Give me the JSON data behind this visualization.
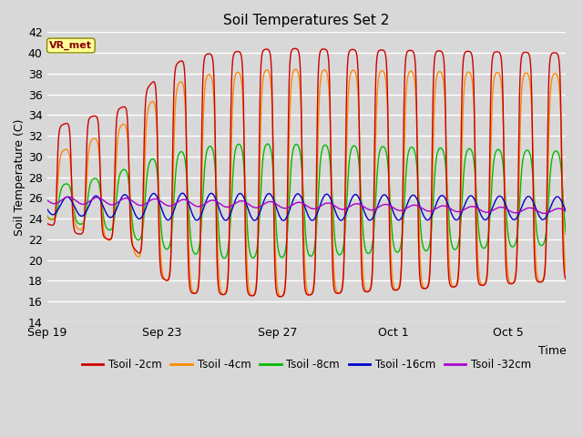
{
  "title": "Soil Temperatures Set 2",
  "xlabel": "Time",
  "ylabel": "Soil Temperature (C)",
  "ylim": [
    14,
    42
  ],
  "yticks": [
    14,
    16,
    18,
    20,
    22,
    24,
    26,
    28,
    30,
    32,
    34,
    36,
    38,
    40,
    42
  ],
  "bg_color": "#d8d8d8",
  "plot_bg_color": "#d8d8d8",
  "grid_color": "#ffffff",
  "series_colors": {
    "Tsoil -2cm": "#cc0000",
    "Tsoil -4cm": "#ff8800",
    "Tsoil -8cm": "#00bb00",
    "Tsoil -16cm": "#0000cc",
    "Tsoil -32cm": "#aa00cc"
  },
  "annotation_text": "VR_met",
  "annotation_bg": "#ffff99",
  "annotation_border": "#888800",
  "annotation_text_color": "#880000",
  "xtick_labels": [
    "Sep 19",
    "Sep 23",
    "Sep 27",
    "Oct 1",
    "Oct 5"
  ],
  "n_days": 18,
  "figsize": [
    6.4,
    4.8
  ],
  "dpi": 100
}
